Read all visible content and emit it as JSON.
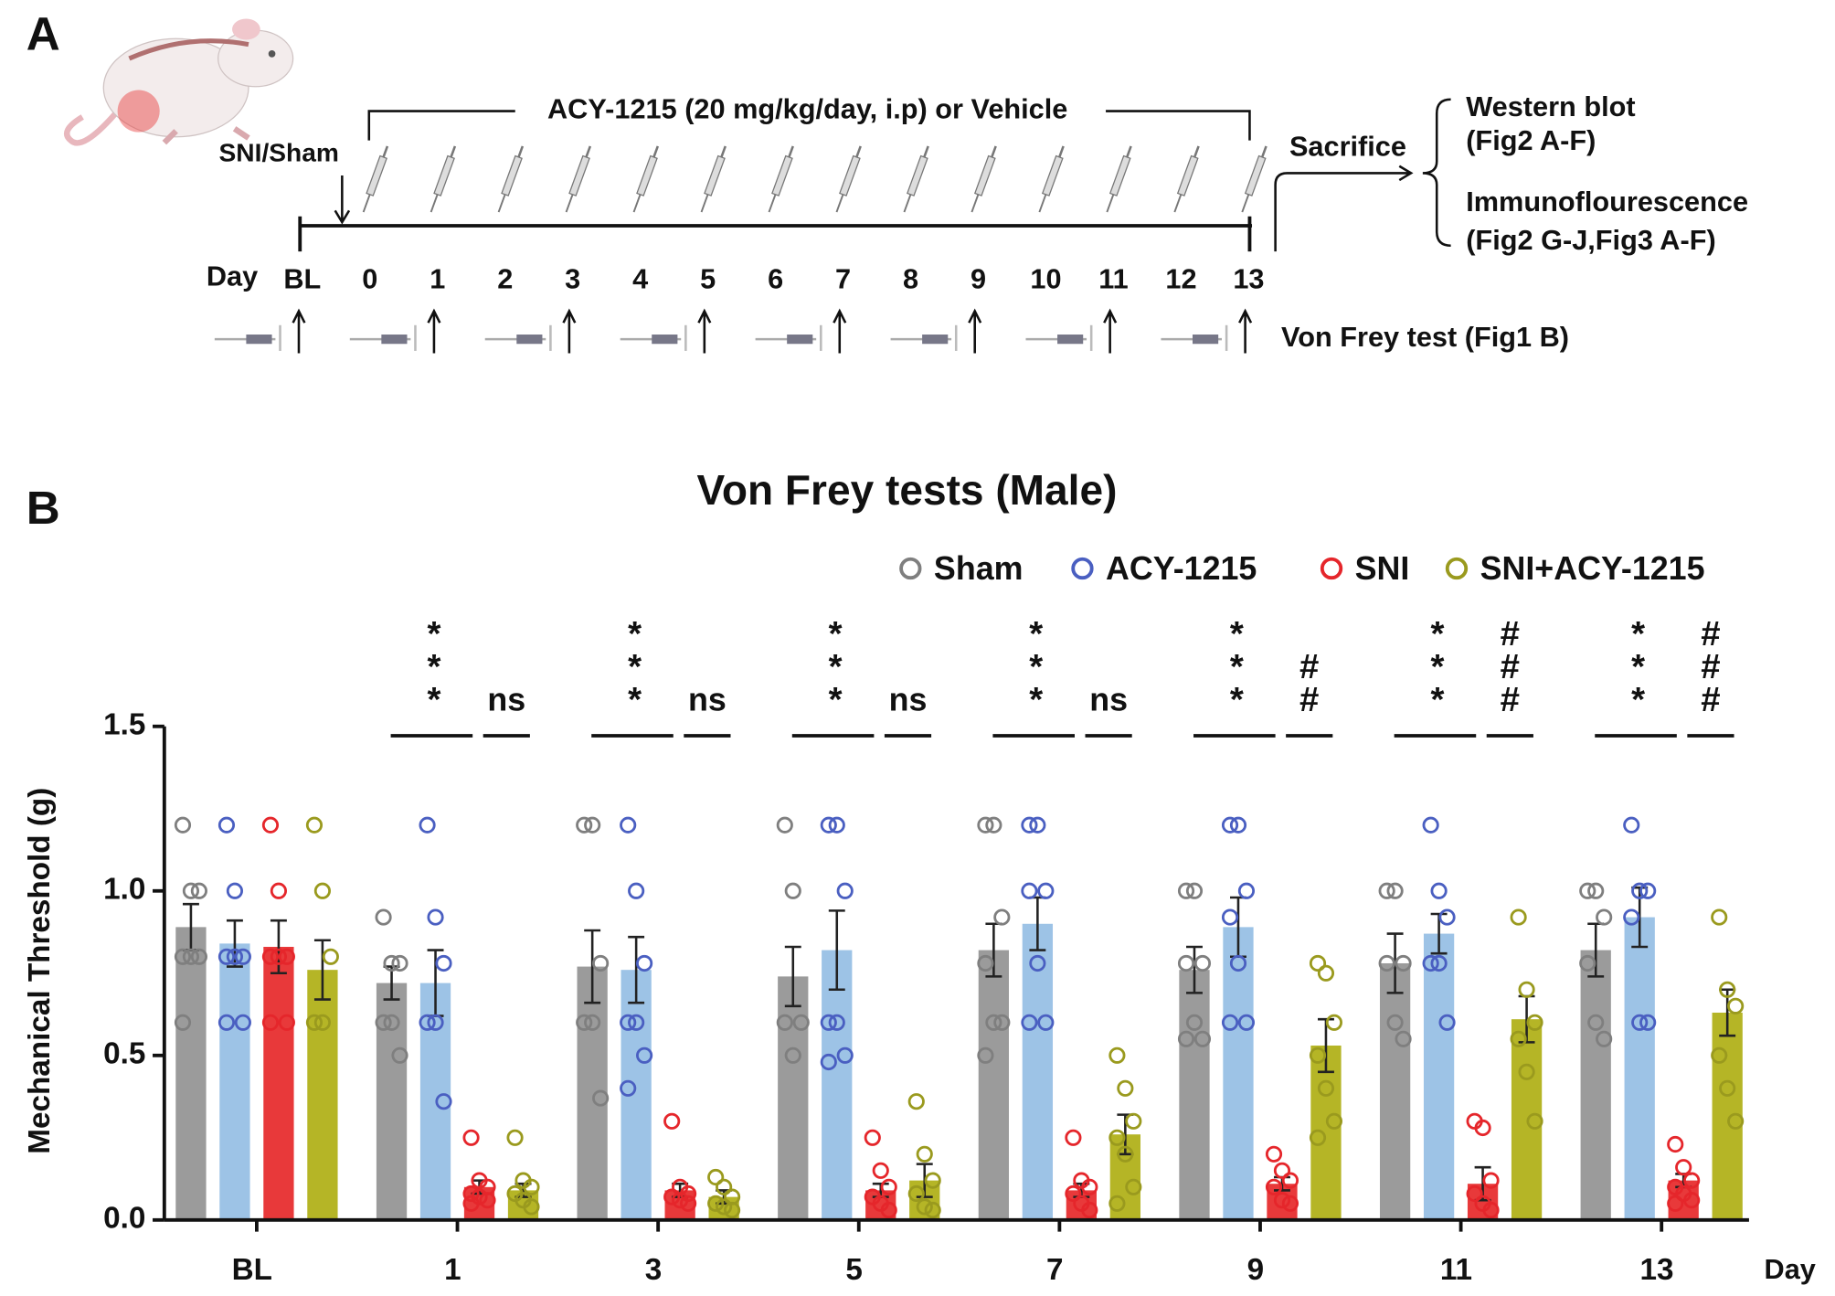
{
  "panel_a": {
    "label": "A",
    "injury": "SNI/Sham",
    "treatment": "ACY-1215 (20 mg/kg/day, i.p) or Vehicle",
    "day_label": "Day",
    "days": [
      "BL",
      "0",
      "1",
      "2",
      "3",
      "4",
      "5",
      "6",
      "7",
      "8",
      "9",
      "10",
      "11",
      "12",
      "13"
    ],
    "sacrifice": "Sacrifice",
    "outcomes": [
      "Western blot",
      "(Fig2 A-F)",
      "Immunoflourescence",
      "(Fig2 G-J,Fig3 A-F)"
    ],
    "test": "Von Frey test (Fig1 B)"
  },
  "panel_b_label": "B",
  "chart_data": {
    "type": "bar",
    "title": "Von Frey tests (Male)",
    "y_label": "Mechanical Threshold (g)",
    "x_label": "Day",
    "categories": [
      "BL",
      "1",
      "3",
      "5",
      "7",
      "9",
      "11",
      "13"
    ],
    "ylim": [
      0,
      1.5
    ],
    "yticks": [
      {
        "value": 0,
        "label": "0.0"
      },
      0.5,
      {
        "value": 1,
        "label": "1.0"
      },
      1.5
    ],
    "series": [
      {
        "name": "Sham",
        "color": "#9b9b9b",
        "marker_color": "#7f7f7f",
        "values": [
          0.89,
          0.72,
          0.77,
          0.74,
          0.82,
          0.76,
          0.78,
          0.82
        ],
        "errors": [
          0.07,
          0.05,
          0.11,
          0.09,
          0.08,
          0.07,
          0.09,
          0.08
        ],
        "points": [
          [
            1.2,
            1.0,
            1.0,
            0.8,
            0.8,
            0.8,
            0.6
          ],
          [
            0.92,
            0.78,
            0.78,
            0.6,
            0.6,
            0.5
          ],
          [
            1.2,
            1.2,
            0.78,
            0.6,
            0.6,
            0.37
          ],
          [
            1.2,
            1.0,
            0.6,
            0.6,
            0.5
          ],
          [
            1.2,
            1.2,
            0.92,
            0.78,
            0.6,
            0.6,
            0.5
          ],
          [
            1.0,
            1.0,
            0.78,
            0.78,
            0.6,
            0.55,
            0.55
          ],
          [
            1.0,
            1.0,
            0.78,
            0.78,
            0.6,
            0.55
          ],
          [
            1.0,
            1.0,
            0.92,
            0.78,
            0.6,
            0.55
          ]
        ]
      },
      {
        "name": "ACY-1215",
        "color": "#9dc3e6",
        "marker_color": "#4a5fc1",
        "values": [
          0.84,
          0.72,
          0.76,
          0.82,
          0.9,
          0.89,
          0.87,
          0.92
        ],
        "errors": [
          0.07,
          0.1,
          0.1,
          0.12,
          0.08,
          0.09,
          0.06,
          0.09
        ],
        "points": [
          [
            1.2,
            1.0,
            0.8,
            0.8,
            0.8,
            0.6,
            0.6
          ],
          [
            1.2,
            0.92,
            0.78,
            0.6,
            0.6,
            0.36
          ],
          [
            1.2,
            1.0,
            0.78,
            0.6,
            0.6,
            0.5,
            0.4
          ],
          [
            1.2,
            1.2,
            1.0,
            0.6,
            0.6,
            0.5,
            0.48
          ],
          [
            1.2,
            1.2,
            1.0,
            1.0,
            0.78,
            0.6,
            0.6
          ],
          [
            1.2,
            1.2,
            1.0,
            0.92,
            0.78,
            0.6,
            0.6
          ],
          [
            1.2,
            1.0,
            0.92,
            0.78,
            0.78,
            0.6
          ],
          [
            1.2,
            1.0,
            1.0,
            0.92,
            0.6,
            0.6
          ]
        ]
      },
      {
        "name": "SNI",
        "color": "#e8393a",
        "marker_color": "#e5262b",
        "values": [
          0.83,
          0.1,
          0.09,
          0.09,
          0.09,
          0.11,
          0.11,
          0.12
        ],
        "errors": [
          0.08,
          0.02,
          0.02,
          0.02,
          0.02,
          0.02,
          0.05,
          0.02
        ],
        "points": [
          [
            1.2,
            1.0,
            0.8,
            0.8,
            0.8,
            0.6,
            0.6
          ],
          [
            0.25,
            0.12,
            0.1,
            0.08,
            0.07,
            0.06,
            0.05
          ],
          [
            0.3,
            0.1,
            0.08,
            0.07,
            0.06,
            0.05
          ],
          [
            0.25,
            0.15,
            0.1,
            0.07,
            0.05,
            0.03
          ],
          [
            0.25,
            0.12,
            0.1,
            0.08,
            0.05,
            0.03
          ],
          [
            0.2,
            0.15,
            0.12,
            0.1,
            0.06,
            0.05
          ],
          [
            0.3,
            0.28,
            0.12,
            0.08,
            0.05,
            0.03
          ],
          [
            0.23,
            0.16,
            0.12,
            0.1,
            0.08,
            0.06,
            0.05
          ]
        ]
      },
      {
        "name": "SNI+ACY-1215",
        "color": "#b5b526",
        "marker_color": "#9a9a1e",
        "values": [
          0.76,
          0.09,
          0.07,
          0.12,
          0.26,
          0.53,
          0.61,
          0.63
        ],
        "errors": [
          0.09,
          0.02,
          0.02,
          0.05,
          0.06,
          0.08,
          0.07,
          0.07
        ],
        "points": [
          [
            1.2,
            1.0,
            0.8,
            0.6,
            0.6
          ],
          [
            0.25,
            0.12,
            0.1,
            0.08,
            0.06,
            0.04
          ],
          [
            0.13,
            0.1,
            0.07,
            0.05,
            0.04,
            0.03
          ],
          [
            0.36,
            0.2,
            0.12,
            0.08,
            0.04,
            0.03
          ],
          [
            0.5,
            0.4,
            0.3,
            0.25,
            0.2,
            0.1,
            0.05
          ],
          [
            0.78,
            0.75,
            0.6,
            0.5,
            0.4,
            0.3,
            0.25
          ],
          [
            0.92,
            0.7,
            0.6,
            0.55,
            0.45,
            0.3
          ],
          [
            0.92,
            0.7,
            0.65,
            0.5,
            0.4,
            0.3
          ]
        ]
      }
    ],
    "significance_sni_vs_sham": [
      null,
      "***",
      "***",
      "***",
      "***",
      "***",
      "***",
      "***"
    ],
    "significance_sni_acy_vs_sni": [
      null,
      "ns",
      "ns",
      "ns",
      "ns",
      "##",
      "###",
      "###"
    ],
    "legend": "top-right"
  }
}
